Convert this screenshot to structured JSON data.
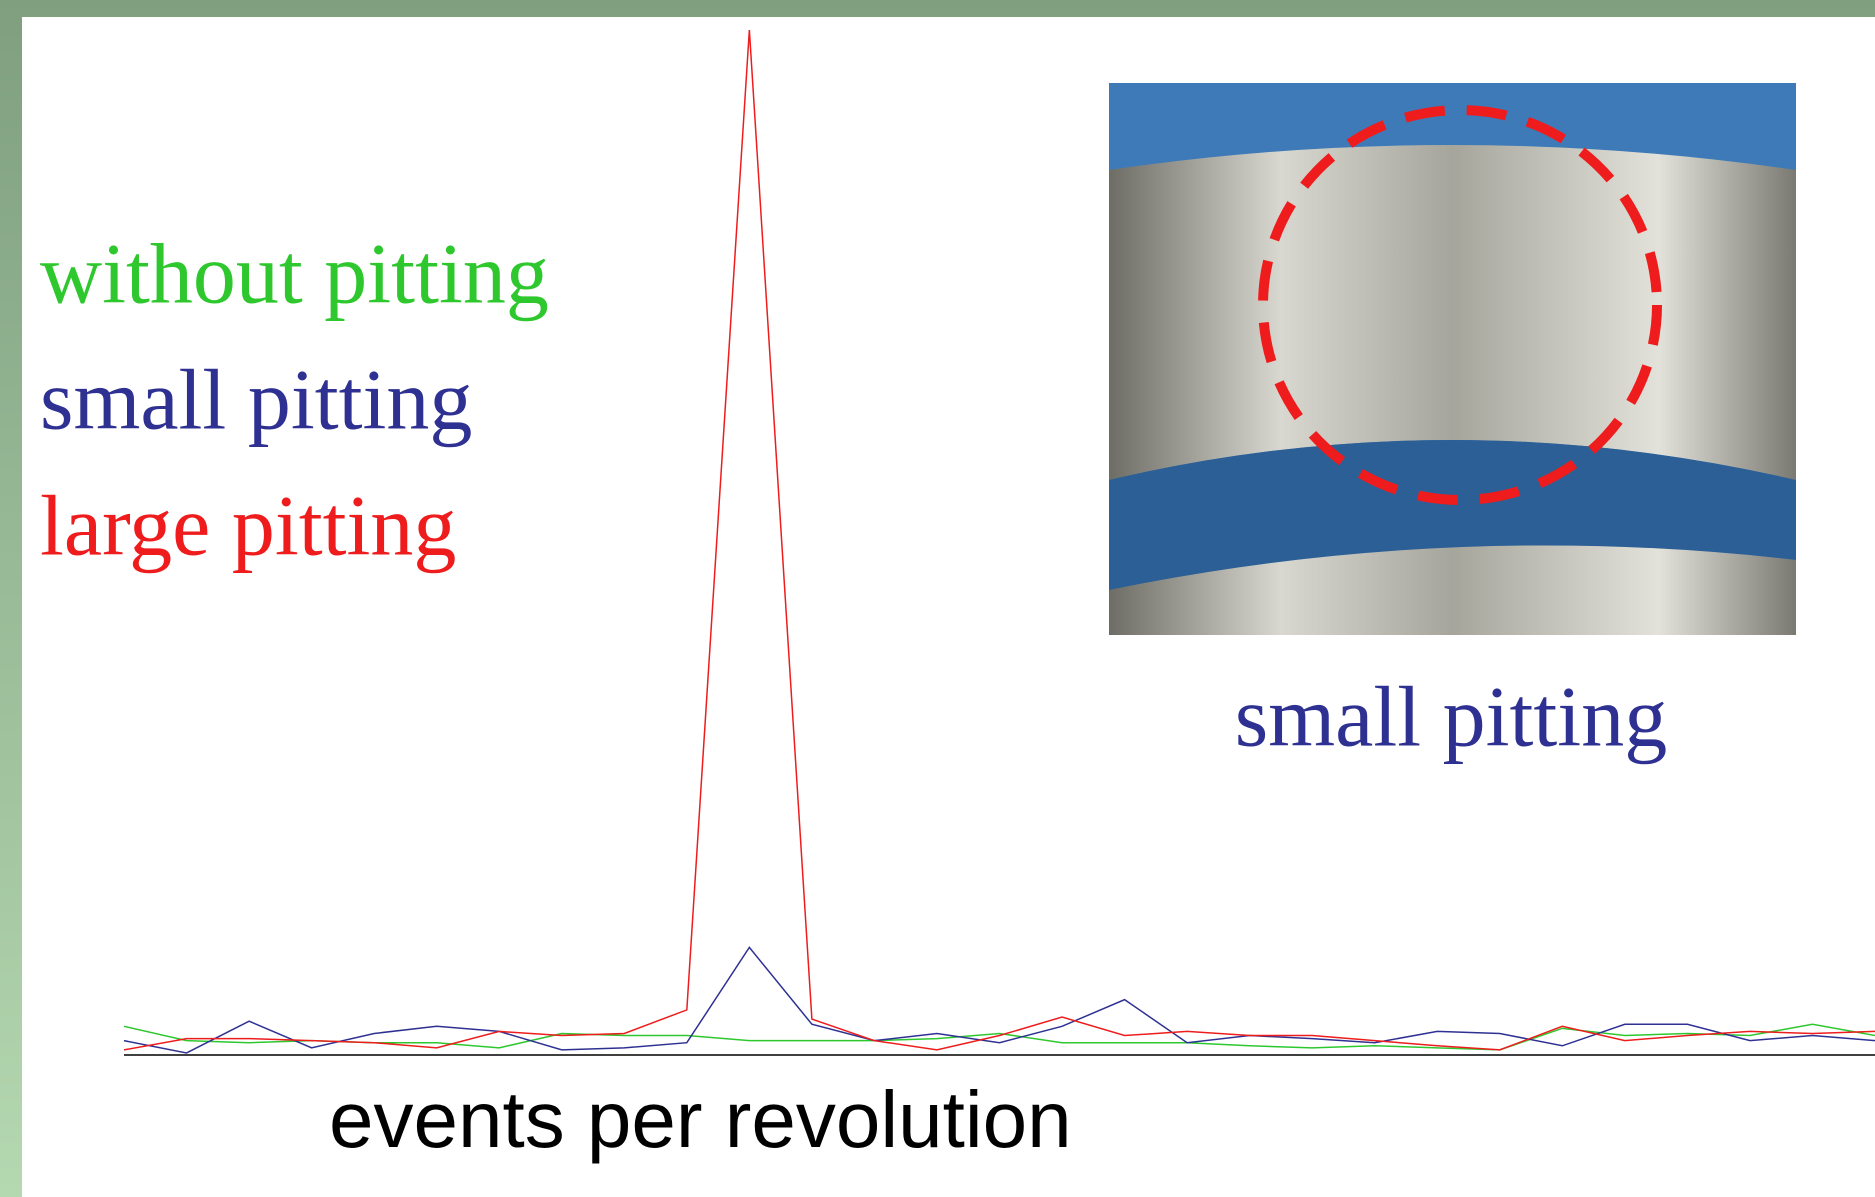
{
  "chart_data": {
    "type": "line",
    "x_label": "events per revolution",
    "inset_caption": "small pitting",
    "x": [
      0,
      1,
      2,
      3,
      4,
      5,
      6,
      7,
      8,
      9,
      10,
      11,
      12,
      13,
      14,
      15,
      16,
      17,
      18,
      19,
      20,
      21,
      22,
      23,
      24,
      25,
      26,
      27,
      28
    ],
    "xlim": [
      0,
      28
    ],
    "ylim": [
      0,
      100
    ],
    "series": [
      {
        "name": "without pitting",
        "color": "#2ec82e",
        "values": [
          2.8,
          1.4,
          1.2,
          1.4,
          1.2,
          1.2,
          0.7,
          2.1,
          1.9,
          1.9,
          1.4,
          1.4,
          1.4,
          1.6,
          2.1,
          1.2,
          1.2,
          1.2,
          0.9,
          0.7,
          0.9,
          0.7,
          0.5,
          2.6,
          1.9,
          2.1,
          1.9,
          3.0,
          1.9
        ]
      },
      {
        "name": "small pitting",
        "color": "#2e3192",
        "values": [
          1.4,
          0.2,
          3.3,
          0.7,
          2.1,
          2.8,
          2.3,
          0.5,
          0.7,
          1.2,
          10.5,
          3.0,
          1.4,
          2.1,
          1.2,
          2.8,
          5.4,
          1.2,
          1.9,
          1.6,
          1.2,
          2.3,
          2.1,
          0.9,
          3.0,
          3.0,
          1.4,
          1.9,
          1.4
        ]
      },
      {
        "name": "large pitting",
        "color": "#ee1c1c",
        "values": [
          0.5,
          1.6,
          1.6,
          1.4,
          1.2,
          0.7,
          2.3,
          1.9,
          2.1,
          4.4,
          100,
          3.5,
          1.4,
          0.5,
          1.9,
          3.7,
          1.9,
          2.3,
          1.9,
          1.9,
          1.4,
          0.9,
          0.5,
          2.8,
          1.4,
          1.9,
          2.3,
          2.1,
          2.3
        ]
      }
    ]
  }
}
